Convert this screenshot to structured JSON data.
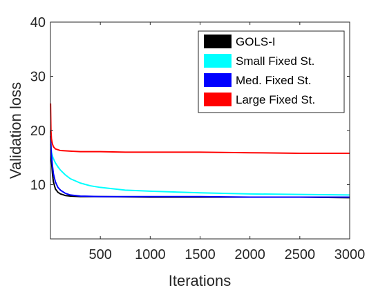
{
  "chart_data": {
    "type": "line",
    "title": "",
    "xlabel": "Iterations",
    "ylabel": "Validation loss",
    "xlim": [
      0,
      3000
    ],
    "ylim": [
      0,
      40
    ],
    "xticks": [
      500,
      1000,
      1500,
      2000,
      2500,
      3000
    ],
    "yticks": [
      10,
      20,
      30,
      40
    ],
    "grid": false,
    "legend_position": "top-right",
    "series": [
      {
        "name": "GOLS-I",
        "color": "#000000",
        "x": [
          1,
          5,
          10,
          20,
          30,
          50,
          75,
          100,
          150,
          200,
          300,
          500,
          1000,
          1500,
          2000,
          2500,
          3000
        ],
        "y": [
          20.0,
          17.0,
          14.5,
          12.0,
          10.5,
          9.2,
          8.6,
          8.3,
          8.0,
          7.9,
          7.8,
          7.8,
          7.7,
          7.7,
          7.7,
          7.7,
          7.6
        ]
      },
      {
        "name": "Small Fixed St.",
        "color": "#00ffff",
        "x": [
          1,
          10,
          25,
          50,
          75,
          100,
          150,
          200,
          300,
          400,
          500,
          750,
          1000,
          1500,
          2000,
          2500,
          3000
        ],
        "y": [
          17.5,
          16.0,
          15.0,
          14.0,
          13.3,
          12.7,
          11.8,
          11.1,
          10.3,
          9.8,
          9.5,
          9.0,
          8.8,
          8.5,
          8.3,
          8.2,
          8.1
        ]
      },
      {
        "name": "Med. Fixed St.",
        "color": "#0000ff",
        "x": [
          1,
          5,
          10,
          20,
          30,
          50,
          75,
          100,
          150,
          200,
          300,
          500,
          1000,
          1500,
          2000,
          2500,
          3000
        ],
        "y": [
          19.0,
          17.0,
          15.5,
          13.5,
          12.0,
          10.5,
          9.5,
          9.0,
          8.4,
          8.1,
          7.9,
          7.8,
          7.8,
          7.8,
          7.7,
          7.7,
          7.7
        ]
      },
      {
        "name": "Large Fixed St.",
        "color": "#ff0000",
        "x": [
          1,
          3,
          5,
          10,
          20,
          30,
          50,
          100,
          200,
          300,
          500,
          750,
          1000,
          1500,
          2000,
          2500,
          3000
        ],
        "y": [
          25.0,
          22.5,
          20.0,
          18.5,
          17.5,
          17.0,
          16.6,
          16.3,
          16.2,
          16.1,
          16.1,
          16.0,
          16.0,
          16.0,
          15.9,
          15.8,
          15.8
        ]
      }
    ]
  }
}
